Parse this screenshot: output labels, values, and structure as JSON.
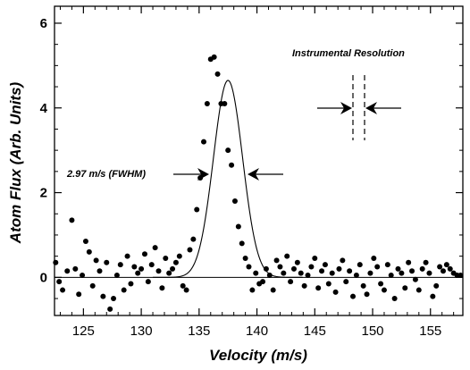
{
  "chart_data": {
    "type": "scatter",
    "title": "",
    "xlabel": "Velocity (m/s)",
    "ylabel": "Atom Flux (Arb. Units)",
    "xlim": [
      122.5,
      157.8
    ],
    "ylim": [
      -0.9,
      6.4
    ],
    "xticks": [
      125,
      130,
      135,
      140,
      145,
      150,
      155
    ],
    "yticks": [
      0,
      2,
      4,
      6
    ],
    "grid": false,
    "series": [
      {
        "kind": "points",
        "x": [
          122.6,
          122.9,
          123.2,
          123.6,
          124.0,
          124.3,
          124.6,
          124.9,
          125.2,
          125.5,
          125.8,
          126.1,
          126.4,
          126.7,
          127.0,
          127.3,
          127.6,
          127.9,
          128.2,
          128.5,
          128.8,
          129.1,
          129.4,
          129.7,
          130.0,
          130.3,
          130.6,
          130.9,
          131.2,
          131.5,
          131.8,
          132.1,
          132.4,
          132.7,
          133.0,
          133.3,
          133.6,
          133.9,
          134.2,
          134.5,
          134.8,
          135.1,
          135.4,
          135.7,
          136.0,
          136.3,
          136.6,
          136.9,
          137.2,
          137.5,
          137.8,
          138.1,
          138.4,
          138.7,
          139.0,
          139.3,
          139.6,
          139.9,
          140.2,
          140.5,
          140.8,
          141.1,
          141.4,
          141.7,
          142.0,
          142.3,
          142.6,
          142.9,
          143.2,
          143.5,
          143.8,
          144.1,
          144.4,
          144.7,
          145.0,
          145.3,
          145.6,
          145.9,
          146.2,
          146.5,
          146.8,
          147.1,
          147.4,
          147.7,
          148.0,
          148.3,
          148.6,
          148.9,
          149.2,
          149.5,
          149.8,
          150.1,
          150.4,
          150.7,
          151.0,
          151.3,
          151.6,
          151.9,
          152.2,
          152.5,
          152.8,
          153.1,
          153.4,
          153.7,
          154.0,
          154.3,
          154.6,
          154.9,
          155.2,
          155.5,
          155.8,
          156.1,
          156.4,
          156.7,
          157.0,
          157.3,
          157.6
        ],
        "y": [
          0.35,
          -0.1,
          -0.3,
          0.15,
          1.35,
          0.2,
          -0.4,
          0.05,
          0.85,
          0.6,
          -0.2,
          0.4,
          0.15,
          -0.45,
          0.35,
          -0.75,
          -0.5,
          0.05,
          0.3,
          -0.3,
          0.5,
          -0.15,
          0.25,
          0.1,
          0.2,
          0.55,
          -0.1,
          0.3,
          0.7,
          0.15,
          -0.25,
          0.45,
          0.1,
          0.2,
          0.35,
          0.5,
          -0.2,
          -0.3,
          0.65,
          0.9,
          1.6,
          2.35,
          3.2,
          4.1,
          5.15,
          5.2,
          4.8,
          4.1,
          4.1,
          3.0,
          2.65,
          1.8,
          1.2,
          0.8,
          0.45,
          0.25,
          -0.3,
          0.1,
          -0.15,
          -0.1,
          0.2,
          0.05,
          -0.3,
          0.4,
          0.25,
          0.1,
          0.5,
          -0.1,
          0.2,
          0.35,
          0.1,
          -0.2,
          0.05,
          0.25,
          0.45,
          -0.25,
          0.15,
          0.3,
          -0.15,
          0.1,
          -0.35,
          0.2,
          0.4,
          -0.1,
          0.15,
          -0.45,
          0.05,
          0.3,
          -0.2,
          -0.4,
          0.1,
          0.45,
          0.25,
          -0.15,
          -0.3,
          0.3,
          0.05,
          -0.5,
          0.2,
          0.1,
          -0.25,
          0.35,
          0.15,
          -0.05,
          -0.3,
          0.2,
          0.35,
          0.1,
          -0.45,
          -0.2,
          0.25,
          0.15,
          0.3,
          0.2,
          0.1,
          0.05,
          0.05
        ]
      },
      {
        "kind": "gaussian-fit",
        "center": 137.5,
        "fwhm": 2.97,
        "amplitude": 4.65
      }
    ],
    "baseline_y": 0,
    "annotations": {
      "fwhm_label": "2.97 m/s (FWHM)",
      "instrumental_label": "Instrumental Resolution"
    }
  }
}
